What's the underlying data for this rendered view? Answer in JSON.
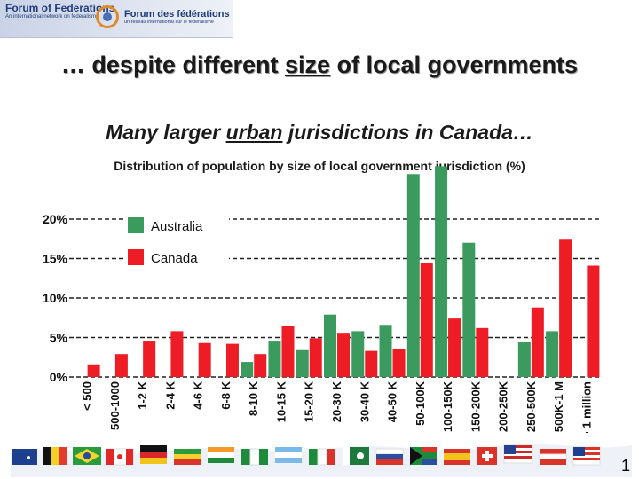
{
  "logo": {
    "left_title": "Forum of Federations",
    "left_tagline": "An international network on federalism",
    "right_title": "Forum des fédérations",
    "right_tagline": "un réseau international sur le fédéralisme"
  },
  "title": {
    "pre": "… despite different ",
    "emph": "size",
    "post": " of local governments"
  },
  "subtitle": {
    "pre": "Many larger ",
    "emph": "urban",
    "post": " jurisdictions in Canada…"
  },
  "page_number": "1",
  "chart_data": {
    "type": "bar",
    "title": "Distribution of population by size of local government jurisdiction (%)",
    "categories": [
      "< 500",
      "500-1000",
      "1-2 K",
      "2-4 K",
      "4-6 K",
      "6-8 K",
      "8-10 K",
      "10-15 K",
      "15-20 K",
      "20-30 K",
      "30-40 K",
      "40-50 K",
      "50-100K",
      "100-150K",
      "150-200K",
      "200-250K",
      "250-500K",
      "500K-1 M",
      "> 1 million"
    ],
    "series": [
      {
        "name": "Australia",
        "color": "#3b9a5e",
        "values": [
          0,
          0,
          0,
          0,
          0,
          0,
          1.9,
          4.6,
          3.4,
          7.9,
          5.8,
          6.6,
          25.7,
          26.7,
          17.0,
          0,
          4.4,
          5.8,
          0
        ]
      },
      {
        "name": "Canada",
        "color": "#ee1c25",
        "values": [
          1.6,
          2.9,
          4.6,
          5.8,
          4.3,
          4.2,
          2.9,
          6.5,
          4.9,
          5.6,
          3.3,
          3.6,
          14.4,
          7.4,
          6.2,
          0,
          8.8,
          17.5,
          14.1
        ]
      }
    ],
    "ylim": [
      0,
      25
    ],
    "yticks": [
      "0%",
      "5%",
      "10%",
      "15%",
      "20%"
    ],
    "ytick_values": [
      0,
      5,
      10,
      15,
      20
    ],
    "grid": true,
    "legend_position": "top-left"
  }
}
